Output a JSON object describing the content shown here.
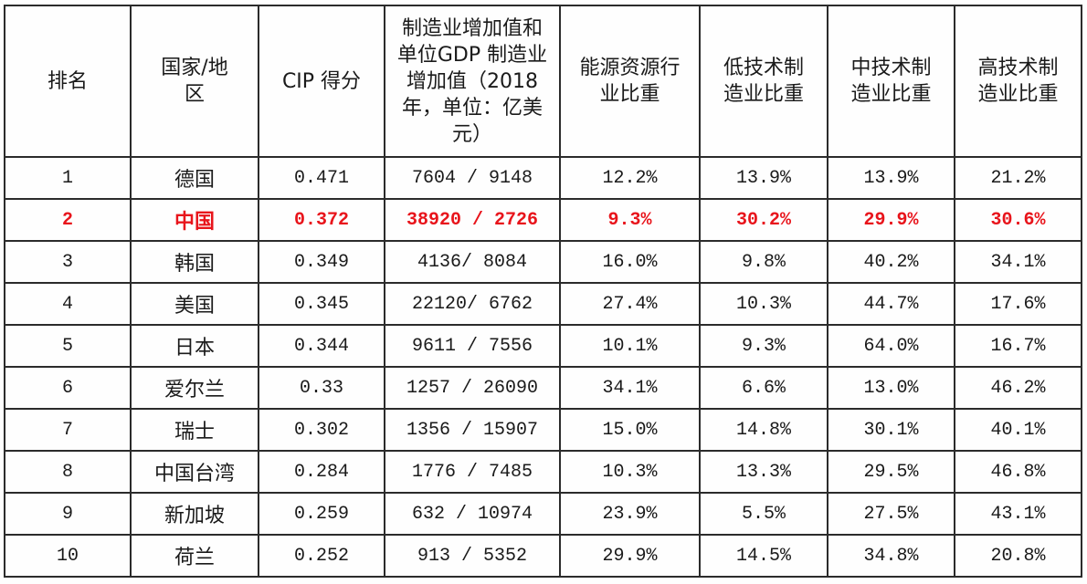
{
  "table": {
    "headers": [
      "排名",
      "国家/地区",
      "CIP 得分",
      "制造业增加值和单位GDP 制造业增加值（2018 年，单位：亿美元）",
      "能源资源行业比重",
      "低技术制造业比重",
      "中技术制造业比重",
      "高技术制造业比重"
    ],
    "highlight_color": "#e8141b",
    "highlight_row": 1,
    "rows": [
      [
        "1",
        "德国",
        "0.471",
        "7604 / 9148",
        "12.2%",
        "13.9%",
        "13.9%",
        "21.2%"
      ],
      [
        "2",
        "中国",
        "0.372",
        "38920 / 2726",
        "9.3%",
        "30.2%",
        "29.9%",
        "30.6%"
      ],
      [
        "3",
        "韩国",
        "0.349",
        "4136/ 8084",
        "16.0%",
        "9.8%",
        "40.2%",
        "34.1%"
      ],
      [
        "4",
        "美国",
        "0.345",
        "22120/ 6762",
        "27.4%",
        "10.3%",
        "44.7%",
        "17.6%"
      ],
      [
        "5",
        "日本",
        "0.344",
        "9611 / 7556",
        "10.1%",
        "9.3%",
        "64.0%",
        "16.7%"
      ],
      [
        "6",
        "爱尔兰",
        "0.33",
        "1257 / 26090",
        "34.1%",
        "6.6%",
        "13.0%",
        "46.2%"
      ],
      [
        "7",
        "瑞士",
        "0.302",
        "1356 / 15907",
        "15.0%",
        "14.8%",
        "30.1%",
        "40.1%"
      ],
      [
        "8",
        "中国台湾",
        "0.284",
        "1776 / 7485",
        "10.3%",
        "13.3%",
        "29.5%",
        "46.8%"
      ],
      [
        "9",
        "新加坡",
        "0.259",
        "632 / 10974",
        "23.9%",
        "5.5%",
        "27.5%",
        "43.1%"
      ],
      [
        "10",
        "荷兰",
        "0.252",
        "913 / 5352",
        "29.9%",
        "14.5%",
        "34.8%",
        "20.8%"
      ]
    ]
  }
}
